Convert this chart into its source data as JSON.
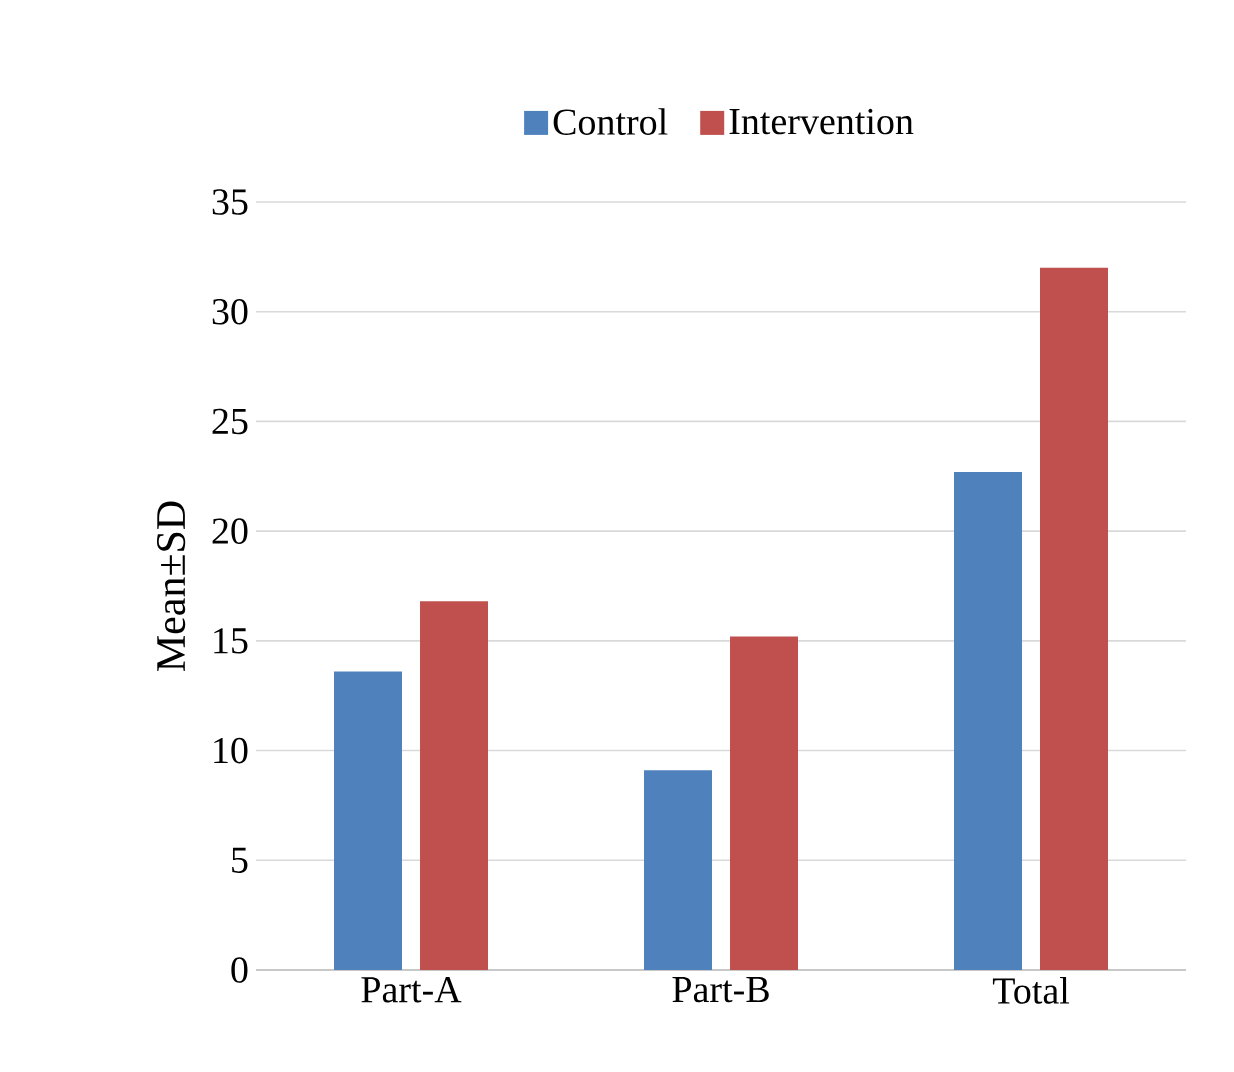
{
  "chart_data": {
    "type": "bar",
    "ylabel": "Mean±SD",
    "categories": [
      "Part-A",
      "Part-B",
      "Total"
    ],
    "series": [
      {
        "name": "Control",
        "color": "#4f81bd",
        "values": [
          13.6,
          9.1,
          22.7
        ]
      },
      {
        "name": "Intervention",
        "color": "#c0504d",
        "values": [
          16.8,
          15.2,
          32.0
        ]
      }
    ],
    "ylim": [
      0,
      35
    ],
    "yticks": [
      0,
      5,
      10,
      15,
      20,
      25,
      30,
      35
    ],
    "grid": "y",
    "legend": "top"
  }
}
